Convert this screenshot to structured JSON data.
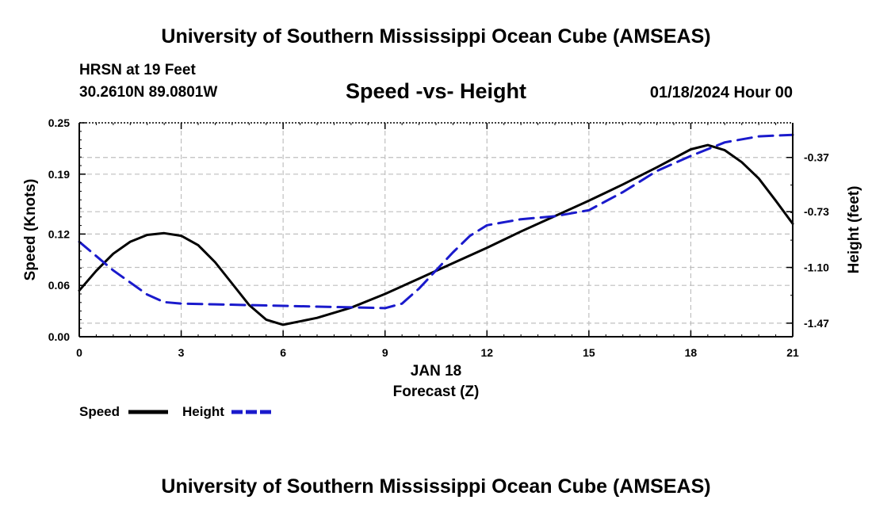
{
  "header": {
    "title_top": "University of Southern Mississippi Ocean Cube (AMSEAS)",
    "title_bottom": "University of Southern Mississippi Ocean Cube (AMSEAS)",
    "station": "HRSN at 19 Feet",
    "coords": "30.2610N  89.0801W",
    "subtitle": "Speed -vs- Height",
    "datetime": "01/18/2024 Hour 00"
  },
  "colors": {
    "speed": "#000000",
    "height": "#1a1acc",
    "grid": "#bfbfbf"
  },
  "chart_data": {
    "type": "line",
    "title": "Speed -vs- Height",
    "xlabel": "Forecast (Z)",
    "xsublabel": "JAN 18",
    "ylabel": "Speed (Knots)",
    "y2label": "Height (feet)",
    "xlim": [
      0,
      21
    ],
    "ylim": [
      0,
      0.25
    ],
    "y2lim": [
      -1.56,
      -0.14
    ],
    "x_ticks": [
      "0",
      "3",
      "6",
      "9",
      "12",
      "15",
      "18",
      "21"
    ],
    "y_ticks": [
      "0.00",
      "0.06",
      "0.12",
      "0.19",
      "0.25"
    ],
    "y2_ticks": [
      "-0.37",
      "-0.73",
      "-1.10",
      "-1.47"
    ],
    "y2_tick_values": [
      -0.37,
      -0.73,
      -1.1,
      -1.47
    ],
    "series": [
      {
        "name": "Speed",
        "axis": "left",
        "x": [
          0,
          0.5,
          1,
          1.5,
          2,
          2.5,
          3,
          3.5,
          4,
          4.5,
          5,
          5.5,
          6,
          7,
          8,
          9,
          10,
          11,
          12,
          13,
          14,
          15,
          16,
          17,
          18,
          18.5,
          19,
          19.5,
          20,
          20.5,
          21
        ],
        "values": [
          0.054,
          0.077,
          0.097,
          0.111,
          0.119,
          0.121,
          0.118,
          0.107,
          0.087,
          0.062,
          0.037,
          0.02,
          0.014,
          0.022,
          0.034,
          0.05,
          0.068,
          0.086,
          0.104,
          0.123,
          0.141,
          0.159,
          0.178,
          0.198,
          0.219,
          0.224,
          0.218,
          0.204,
          0.185,
          0.159,
          0.132
        ]
      },
      {
        "name": "Height",
        "axis": "right",
        "x": [
          0,
          1,
          2,
          2.5,
          3,
          4,
          5,
          6,
          7,
          8,
          9,
          9.5,
          10,
          10.5,
          11,
          11.5,
          12,
          13,
          14,
          15,
          16,
          17,
          18,
          19,
          20,
          21
        ],
        "values": [
          -0.93,
          -1.12,
          -1.28,
          -1.33,
          -1.34,
          -1.345,
          -1.35,
          -1.355,
          -1.36,
          -1.365,
          -1.37,
          -1.34,
          -1.24,
          -1.12,
          -1.0,
          -0.89,
          -0.82,
          -0.78,
          -0.76,
          -0.72,
          -0.6,
          -0.46,
          -0.36,
          -0.27,
          -0.23,
          -0.22
        ]
      }
    ],
    "legend": [
      {
        "label": "Speed",
        "style": "solid"
      },
      {
        "label": "Height",
        "style": "dashed"
      }
    ]
  }
}
